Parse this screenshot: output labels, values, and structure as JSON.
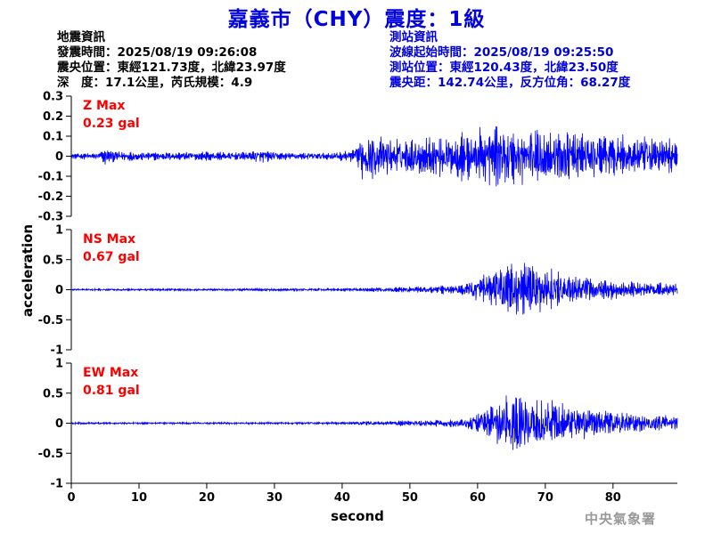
{
  "title": "嘉義市（CHY）震度：1級",
  "quake_info": {
    "header": "地震資訊",
    "origin_time": "發震時間：2025/08/19 09:26:08",
    "epicenter": "震央位置：東經121.73度，北緯23.97度",
    "depth_magnitude": "深　度：17.1公里，芮氏規模：4.9"
  },
  "station_info": {
    "header": "測站資訊",
    "wave_start": "波線起始時間：2025/08/19 09:25:50",
    "station_location": "測站位置：東經120.43度，北緯23.50度",
    "distance_azimuth": "震央距：142.74公里，反方位角：68.27度"
  },
  "agency": "中央氣象署",
  "colors": {
    "title": "#0000e0",
    "trace": "#0000ff",
    "max_label": "#ff0000",
    "station_text": "#0000dd"
  },
  "chart_data": {
    "type": "line",
    "xlabel": "second",
    "ylabel": "acceleration",
    "xlim": [
      0,
      89.5
    ],
    "xticks": [
      0,
      10,
      20,
      30,
      40,
      50,
      60,
      70,
      80
    ],
    "panels": [
      {
        "name": "Z",
        "max_label": "Z Max",
        "max_value": "0.23 gal",
        "ylim": [
          -0.3,
          0.3
        ],
        "yticks": [
          -0.3,
          -0.2,
          -0.1,
          0,
          0.1,
          0.2,
          0.3
        ],
        "ytick_labels": [
          "-0.3",
          "-0.2",
          "-0.1",
          "0",
          "0.1",
          "0.2",
          "0.3"
        ],
        "envelope": [
          [
            0,
            0.02
          ],
          [
            4,
            0.025
          ],
          [
            5,
            0.07
          ],
          [
            6,
            0.04
          ],
          [
            12,
            0.03
          ],
          [
            20,
            0.03
          ],
          [
            26,
            0.03
          ],
          [
            28,
            0.05
          ],
          [
            30,
            0.03
          ],
          [
            38,
            0.025
          ],
          [
            42,
            0.05
          ],
          [
            43,
            0.17
          ],
          [
            45,
            0.15
          ],
          [
            48,
            0.12
          ],
          [
            52,
            0.13
          ],
          [
            56,
            0.15
          ],
          [
            60,
            0.18
          ],
          [
            62,
            0.22
          ],
          [
            66,
            0.2
          ],
          [
            70,
            0.2
          ],
          [
            74,
            0.17
          ],
          [
            80,
            0.14
          ],
          [
            85,
            0.13
          ],
          [
            89.5,
            0.12
          ]
        ]
      },
      {
        "name": "NS",
        "max_label": "NS Max",
        "max_value": "0.67 gal",
        "ylim": [
          -1,
          1
        ],
        "yticks": [
          -1,
          -0.5,
          0,
          0.5,
          1
        ],
        "ytick_labels": [
          "-1",
          "-0.5",
          "0",
          "0.5",
          "1"
        ],
        "envelope": [
          [
            0,
            0.02
          ],
          [
            40,
            0.03
          ],
          [
            45,
            0.05
          ],
          [
            52,
            0.08
          ],
          [
            58,
            0.12
          ],
          [
            61,
            0.35
          ],
          [
            63,
            0.5
          ],
          [
            66,
            0.65
          ],
          [
            70,
            0.5
          ],
          [
            74,
            0.35
          ],
          [
            78,
            0.25
          ],
          [
            82,
            0.2
          ],
          [
            89.5,
            0.15
          ]
        ]
      },
      {
        "name": "EW",
        "max_label": "EW Max",
        "max_value": "0.81 gal",
        "ylim": [
          -1,
          1
        ],
        "yticks": [
          -1,
          -0.5,
          0,
          0.5,
          1
        ],
        "ytick_labels": [
          "-1",
          "-0.5",
          "0",
          "0.5",
          "1"
        ],
        "envelope": [
          [
            0,
            0.02
          ],
          [
            40,
            0.025
          ],
          [
            44,
            0.05
          ],
          [
            52,
            0.07
          ],
          [
            58,
            0.1
          ],
          [
            61,
            0.35
          ],
          [
            63,
            0.6
          ],
          [
            67,
            0.75
          ],
          [
            70,
            0.55
          ],
          [
            74,
            0.4
          ],
          [
            78,
            0.3
          ],
          [
            82,
            0.25
          ],
          [
            89.5,
            0.18
          ]
        ]
      }
    ]
  }
}
